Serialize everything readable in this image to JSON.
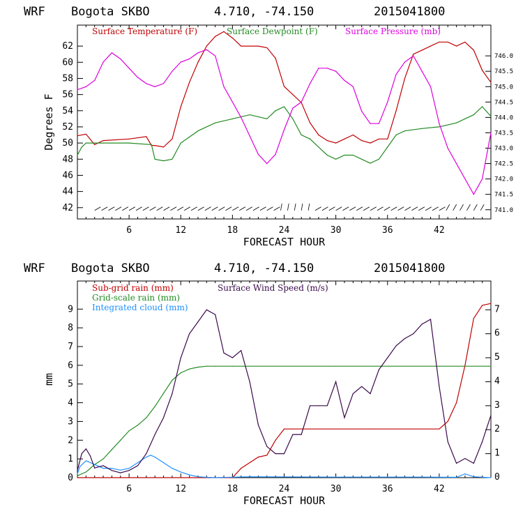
{
  "chart_data": [
    {
      "type": "line",
      "header": {
        "model": "WRF",
        "station": "Bogota SKBO",
        "coords": "4.710, -74.150",
        "run": "2015041800"
      },
      "xlabel": "FORECAST HOUR",
      "ylabel": "Degrees F",
      "xlim": [
        0,
        48
      ],
      "xticks": [
        "6",
        "12",
        "18",
        "24",
        "30",
        "36",
        "42"
      ],
      "ylim": [
        40.6,
        64.6
      ],
      "yticks": [
        "42",
        "44",
        "46",
        "48",
        "50",
        "52",
        "54",
        "56",
        "58",
        "60",
        "62"
      ],
      "y2lim": [
        740.7,
        747.0
      ],
      "y2ticks": [
        "741.0",
        "741.5",
        "742.0",
        "742.5",
        "743.0",
        "743.5",
        "744.0",
        "744.5",
        "745.0",
        "745.5",
        "746.0"
      ],
      "colors": {
        "temperature": "#c00000",
        "dewpoint": "#228b22",
        "pressure": "#dd00dd"
      },
      "series": [
        {
          "name": "Surface Temperature (F)",
          "axis": "left",
          "x": [
            0,
            1,
            2,
            3,
            6,
            8,
            8.6,
            9,
            10,
            11,
            12,
            13,
            14,
            15,
            16,
            17,
            18,
            19,
            20,
            21,
            22,
            23,
            24,
            25,
            26,
            27,
            28,
            29,
            30,
            31,
            32,
            33,
            34,
            35,
            36,
            37,
            38,
            39,
            40,
            41,
            42,
            43,
            44,
            45,
            46,
            47,
            48
          ],
          "y": [
            50.9,
            51.1,
            49.8,
            50.3,
            50.5,
            50.8,
            49.7,
            49.7,
            49.5,
            50.5,
            54.5,
            57.5,
            60.0,
            62.0,
            63.2,
            63.8,
            63.0,
            62.0,
            62.0,
            62.0,
            61.8,
            60.5,
            57.0,
            56.0,
            55.0,
            52.5,
            51.0,
            50.3,
            50.0,
            50.5,
            51.0,
            50.3,
            50.0,
            50.5,
            50.5,
            54.0,
            58.0,
            61.0,
            61.5,
            62.0,
            62.5,
            62.5,
            62.0,
            62.5,
            61.5,
            59.0,
            57.5
          ]
        },
        {
          "name": "Surface Dewpoint (F)",
          "axis": "left",
          "x": [
            0,
            0.5,
            1,
            2,
            3,
            6,
            8.6,
            9,
            10,
            11,
            12,
            14,
            16,
            18,
            20,
            22,
            23,
            24,
            25,
            26,
            27,
            28,
            29,
            30,
            31,
            32,
            33,
            34,
            35,
            36,
            37,
            38,
            40,
            42,
            44,
            46,
            47,
            48
          ],
          "y": [
            48.5,
            49.5,
            50.0,
            50.0,
            50.0,
            50.0,
            49.8,
            48.0,
            47.8,
            48.0,
            50.0,
            51.5,
            52.5,
            53.0,
            53.5,
            53.0,
            54.0,
            54.5,
            53.0,
            51.0,
            50.5,
            49.5,
            48.5,
            48.0,
            48.5,
            48.5,
            48.0,
            47.5,
            48.0,
            49.5,
            51.0,
            51.5,
            51.8,
            52.0,
            52.5,
            53.5,
            54.5,
            53.3
          ]
        },
        {
          "name": "Surface Pressure (mb)",
          "axis": "right",
          "x": [
            0,
            1,
            2,
            3,
            4,
            5,
            6,
            7,
            8,
            9,
            10,
            11,
            12,
            13,
            14,
            15,
            16,
            17,
            18,
            19,
            20,
            21,
            22,
            23,
            24,
            25,
            26,
            27,
            28,
            29,
            30,
            31,
            32,
            33,
            34,
            35,
            36,
            37,
            38,
            39,
            40,
            41,
            42,
            43,
            44,
            45,
            46,
            47,
            48
          ],
          "y": [
            744.9,
            745.0,
            745.2,
            745.8,
            746.1,
            745.9,
            745.6,
            745.3,
            745.1,
            745.0,
            745.1,
            745.5,
            745.8,
            745.9,
            746.1,
            746.2,
            746.0,
            745.0,
            744.5,
            744.0,
            743.4,
            742.8,
            742.5,
            742.8,
            743.6,
            744.3,
            744.5,
            745.1,
            745.6,
            745.6,
            745.5,
            745.2,
            745.0,
            744.2,
            743.8,
            743.8,
            744.5,
            745.4,
            745.8,
            746.0,
            745.5,
            745.0,
            743.8,
            743.0,
            742.5,
            742.0,
            741.5,
            742.0,
            743.5
          ]
        }
      ],
      "wind_barbs": "row of wind barbs along the bottom of the temperature panel"
    },
    {
      "type": "line",
      "header": {
        "model": "WRF",
        "station": "Bogota SKBO",
        "coords": "4.710, -74.150",
        "run": "2015041800"
      },
      "xlabel": "FORECAST HOUR",
      "ylabel": "mm",
      "xlim": [
        0,
        48
      ],
      "xticks": [
        "6",
        "12",
        "18",
        "24",
        "30",
        "36",
        "42"
      ],
      "ylim": [
        0,
        10.5
      ],
      "yticks": [
        "0",
        "1",
        "2",
        "3",
        "4",
        "5",
        "6",
        "7",
        "8",
        "9"
      ],
      "y2lim": [
        0,
        8.2
      ],
      "y2ticks": [
        "0",
        "1",
        "2",
        "3",
        "4",
        "5",
        "6",
        "7"
      ],
      "colors": {
        "subgrid": "#c00000",
        "gridscale": "#228b22",
        "cloud": "#1e90ff",
        "wind": "#3a0a4a"
      },
      "series": [
        {
          "name": "Sub-grid rain (mm)",
          "axis": "left",
          "x": [
            0,
            18,
            19,
            20,
            21,
            22,
            23,
            24,
            25,
            34,
            42,
            43,
            44,
            45,
            46,
            47,
            48
          ],
          "y": [
            0,
            0,
            0.5,
            0.8,
            1.1,
            1.2,
            2.0,
            2.6,
            2.6,
            2.6,
            2.6,
            3.0,
            4.0,
            6.0,
            8.5,
            9.2,
            9.3
          ]
        },
        {
          "name": "Grid-scale rain (mm)",
          "axis": "left",
          "x": [
            0,
            1,
            2,
            3,
            4,
            5,
            6,
            7,
            8,
            9,
            10,
            11,
            12,
            13,
            14,
            15,
            16,
            18,
            30,
            48
          ],
          "y": [
            0.1,
            0.3,
            0.7,
            1.0,
            1.5,
            2.0,
            2.5,
            2.8,
            3.2,
            3.8,
            4.5,
            5.2,
            5.6,
            5.8,
            5.9,
            5.95,
            5.95,
            5.95,
            5.95,
            5.95
          ]
        },
        {
          "name": "Integrated cloud (mm)",
          "axis": "left",
          "x": [
            0,
            0.3,
            1,
            2,
            3,
            4,
            5,
            6,
            7,
            8,
            8.5,
            9,
            10,
            11,
            12,
            13,
            14,
            15,
            16,
            20,
            30,
            40,
            44,
            45,
            46,
            48
          ],
          "y": [
            0.2,
            0.6,
            0.9,
            0.7,
            0.5,
            0.5,
            0.4,
            0.5,
            0.8,
            1.1,
            1.2,
            1.1,
            0.8,
            0.5,
            0.3,
            0.15,
            0.05,
            0.02,
            0,
            0.05,
            0.03,
            0.03,
            0.02,
            0.2,
            0.05,
            0
          ]
        },
        {
          "name": "Surface Wind Speed (m/s)",
          "axis": "right",
          "x": [
            0,
            0.5,
            1,
            1.5,
            2,
            3,
            4,
            5,
            6,
            7,
            8,
            9,
            10,
            11,
            12,
            13,
            14,
            15,
            16,
            17,
            18,
            19,
            20,
            21,
            22,
            23,
            24,
            25,
            26,
            27,
            28,
            29,
            30,
            31,
            32,
            33,
            34,
            35,
            36,
            37,
            38,
            39,
            40,
            41,
            42,
            43,
            44,
            45,
            46,
            47,
            48
          ],
          "y": [
            0.3,
            1.0,
            1.2,
            0.9,
            0.4,
            0.5,
            0.3,
            0.2,
            0.3,
            0.5,
            1.0,
            1.8,
            2.5,
            3.5,
            5.0,
            6.0,
            6.5,
            7.0,
            6.8,
            5.2,
            5.0,
            5.3,
            4.0,
            2.2,
            1.3,
            1.0,
            1.0,
            1.8,
            1.8,
            3.0,
            3.0,
            3.0,
            4.0,
            2.5,
            3.5,
            3.8,
            3.5,
            4.5,
            5.0,
            5.5,
            5.8,
            6.0,
            6.4,
            6.6,
            3.8,
            1.5,
            0.6,
            0.8,
            0.6,
            1.5,
            2.6
          ]
        }
      ]
    }
  ]
}
